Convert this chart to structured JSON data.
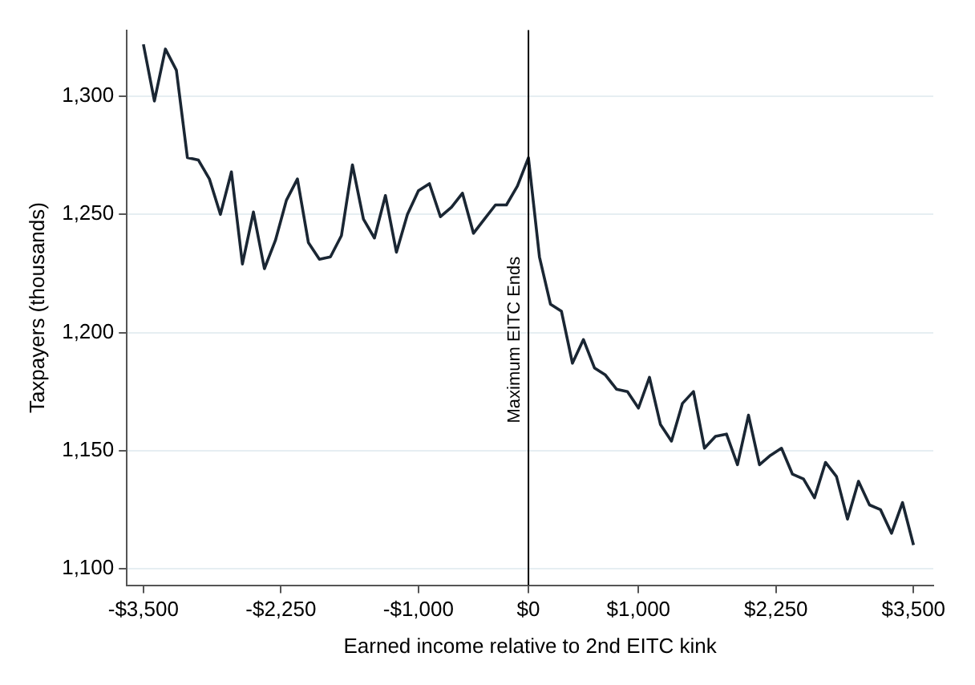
{
  "chart_data": {
    "type": "line",
    "xlabel": "Earned income relative to 2nd EITC kink",
    "ylabel": "Taxpayers (thousands)",
    "x": [
      -3500,
      -3400,
      -3300,
      -3200,
      -3100,
      -3000,
      -2900,
      -2800,
      -2700,
      -2600,
      -2500,
      -2400,
      -2300,
      -2200,
      -2100,
      -2000,
      -1900,
      -1800,
      -1700,
      -1600,
      -1500,
      -1400,
      -1300,
      -1200,
      -1100,
      -1000,
      -900,
      -800,
      -700,
      -600,
      -500,
      -400,
      -300,
      -200,
      -100,
      0,
      100,
      200,
      300,
      400,
      500,
      600,
      700,
      800,
      900,
      1000,
      1100,
      1200,
      1300,
      1400,
      1500,
      1600,
      1700,
      1800,
      1900,
      2000,
      2100,
      2200,
      2300,
      2400,
      2500,
      2600,
      2700,
      2800,
      2900,
      3000,
      3100,
      3200,
      3300,
      3400,
      3500
    ],
    "series": [
      {
        "color": "#1a2633",
        "values": [
          1322,
          1298,
          1320,
          1311,
          1274,
          1273,
          1265,
          1250,
          1268,
          1229,
          1251,
          1227,
          1239,
          1256,
          1265,
          1238,
          1231,
          1232,
          1241,
          1271,
          1248,
          1240,
          1258,
          1234,
          1250,
          1260,
          1263,
          1249,
          1253,
          1259,
          1242,
          1248,
          1254,
          1254,
          1262,
          1274,
          1232,
          1212,
          1209,
          1187,
          1197,
          1185,
          1182,
          1176,
          1175,
          1168,
          1181,
          1161,
          1154,
          1170,
          1175,
          1151,
          1156,
          1157,
          1144,
          1165,
          1144,
          1148,
          1151,
          1140,
          1138,
          1130,
          1145,
          1139,
          1121,
          1137,
          1127,
          1125,
          1115,
          1128,
          1110
        ]
      }
    ],
    "xlim": [
      -3650,
      3680
    ],
    "ylim": [
      1093,
      1328
    ],
    "xticks": [
      {
        "value": -3500,
        "label": "-$3,500"
      },
      {
        "value": -2250,
        "label": "-$2,250"
      },
      {
        "value": -1000,
        "label": "-$1,000"
      },
      {
        "value": 0,
        "label": "$0"
      },
      {
        "value": 1000,
        "label": "$1,000"
      },
      {
        "value": 2250,
        "label": "$2,250"
      },
      {
        "value": 3500,
        "label": "$3,500"
      }
    ],
    "yticks": [
      {
        "value": 1100,
        "label": "1,100"
      },
      {
        "value": 1150,
        "label": "1,150"
      },
      {
        "value": 1200,
        "label": "1,200"
      },
      {
        "value": 1250,
        "label": "1,250"
      },
      {
        "value": 1300,
        "label": "1,300"
      }
    ],
    "ref_lines": [
      {
        "axis": "x",
        "value": 0,
        "label": "Maximum EITC Ends",
        "color": "#000000"
      }
    ],
    "grid": "y",
    "legend": false,
    "marker": "none",
    "line_style": "solid"
  }
}
